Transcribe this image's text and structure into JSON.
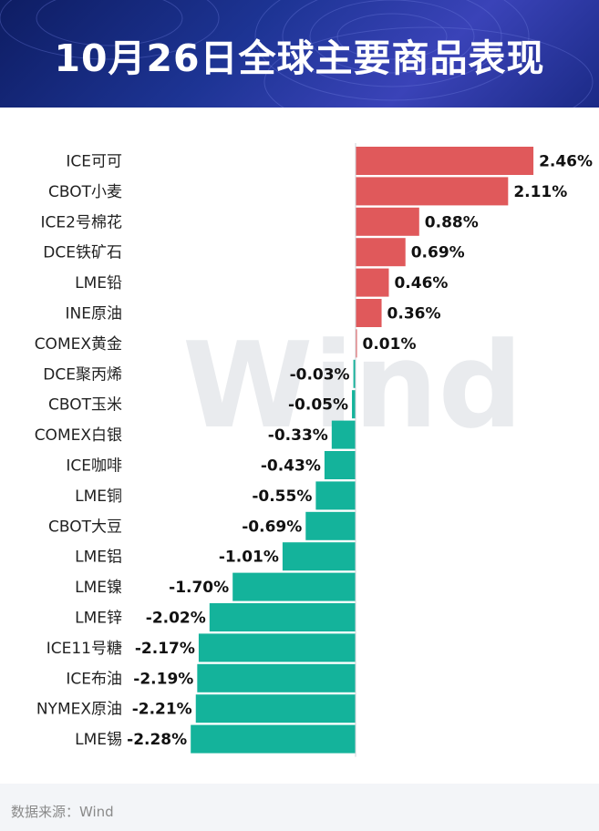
{
  "page": {
    "title": "10月26日全球主要商品表现",
    "source": "数据来源：Wind"
  },
  "watermark": "Wind",
  "colors": {
    "positive": "#e0595b",
    "negative": "#14b39b",
    "header_bg": "#1d3494"
  },
  "chart_data": {
    "type": "bar",
    "orientation": "horizontal",
    "title": "10月26日全球主要商品表现",
    "unit": "%",
    "categories": [
      "ICE可可",
      "CBOT小麦",
      "ICE2号棉花",
      "DCE铁矿石",
      "LME铅",
      "INE原油",
      "COMEX黄金",
      "DCE聚丙烯",
      "CBOT玉米",
      "COMEX白银",
      "ICE咖啡",
      "LME铜",
      "CBOT大豆",
      "LME铝",
      "LME镍",
      "LME锌",
      "ICE11号糖",
      "ICE布油",
      "NYMEX原油",
      "LME锡"
    ],
    "values": [
      2.46,
      2.11,
      0.88,
      0.69,
      0.46,
      0.36,
      0.01,
      -0.03,
      -0.05,
      -0.33,
      -0.43,
      -0.55,
      -0.69,
      -1.01,
      -1.7,
      -2.02,
      -2.17,
      -2.19,
      -2.21,
      -2.28
    ],
    "value_labels": [
      "2.46%",
      "2.11%",
      "0.88%",
      "0.69%",
      "0.46%",
      "0.36%",
      "0.01%",
      "-0.03%",
      "-0.05%",
      "-0.33%",
      "-0.43%",
      "-0.55%",
      "-0.69%",
      "-1.01%",
      "-1.70%",
      "-2.02%",
      "-2.17%",
      "-2.19%",
      "-2.21%",
      "-2.28%"
    ],
    "xlim": [
      -2.28,
      2.46
    ],
    "grid": false,
    "legend": "none"
  }
}
